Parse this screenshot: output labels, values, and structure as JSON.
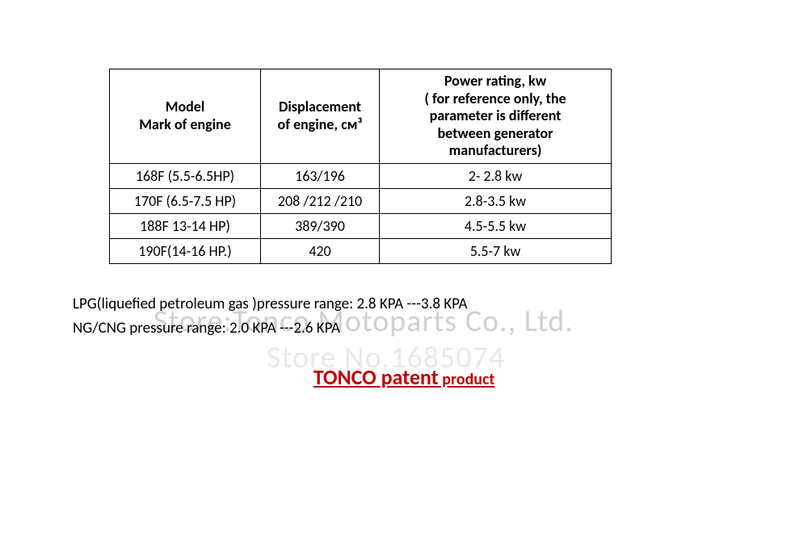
{
  "watermark_line1": "Store:Tonco Motoparts Co., Ltd.",
  "watermark_line2": "Store No.1685074",
  "table": {
    "headers": {
      "col1_line1": "Model",
      "col1_line2": "Mark of engine",
      "col2_line1": "Displacement",
      "col2_line2": "of engine, см³",
      "col3_line1": "Power rating, kw",
      "col3_line2": "( for reference only,    the",
      "col3_line3": "parameter is different",
      "col3_line4": "between    generator",
      "col3_line5": "manufacturers)"
    },
    "rows": [
      {
        "model": "168F (5.5-6.5HP)",
        "disp": "163/196",
        "power": "2- 2.8    kw"
      },
      {
        "model": "170F (6.5-7.5 HP)",
        "disp": "208 /212 /210",
        "power": "2.8-3.5 kw"
      },
      {
        "model": "188F 13-14 HP)",
        "disp": "389/390",
        "power": "4.5-5.5 kw"
      },
      {
        "model": "190F(14-16 HP.)",
        "disp": "420",
        "power": "5.5-7    kw"
      }
    ]
  },
  "notes": {
    "line1": "LPG(liquefied petroleum gas )pressure range: 2.8 KPA ---3.8 KPA",
    "line2": "NG/CNG pressure range: 2.0 KPA ---2.6 KPA"
  },
  "patent_main": "TONCO patent",
  "patent_suffix": " product",
  "colors": {
    "text": "#000000",
    "patent": "#c00000",
    "watermark": "#d0d0d0",
    "background": "#ffffff",
    "border": "#000000"
  },
  "fontsize": {
    "table": 18,
    "notes": 19,
    "patent_main": 26,
    "patent_suffix": 20
  }
}
